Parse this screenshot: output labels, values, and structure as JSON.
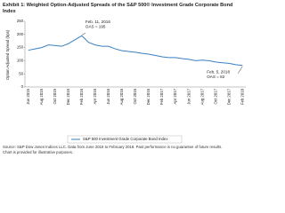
{
  "chart_data": {
    "type": "line",
    "title": [
      "Exhibit 1: Weighted Option-Adjusted Spreads of the S&P 500® Investment Grade Corporate Bond",
      "Index"
    ],
    "y_label": "Option Adjusted Spread (bps)",
    "categories": [
      "Jun 2015",
      null,
      "Aug 2015",
      null,
      "Oct 2015",
      null,
      "Dec 2015",
      null,
      "Feb 2016",
      null,
      "Apr 2016",
      null,
      "Jun 2016",
      null,
      "Aug 2016",
      null,
      "Oct 2016",
      null,
      "Dec 2016",
      null,
      "Feb 2017",
      null,
      "Apr 2017",
      null,
      "Jun 2017",
      null,
      "Aug 2017",
      null,
      "Oct 2017",
      null,
      "Dec 2017",
      null,
      "Feb 2018"
    ],
    "series": [
      {
        "name": "S&P 500 Investment Grade Corporate Bond Index",
        "color": "#3a7fc1",
        "values": [
          140,
          145,
          150,
          160,
          158,
          155,
          165,
          180,
          195,
          170,
          160,
          155,
          155,
          145,
          138,
          135,
          132,
          128,
          125,
          120,
          115,
          112,
          112,
          108,
          105,
          100,
          102,
          100,
          95,
          92,
          90,
          85,
          82
        ]
      }
    ],
    "ylim": [
      0,
      250
    ],
    "yticks": [
      0,
      50,
      100,
      150,
      200,
      250
    ],
    "grid": false,
    "annotations": [
      {
        "lines": [
          "Feb. 11, 2016",
          "OAS = 195"
        ],
        "index": 8
      },
      {
        "lines": [
          "Feb. 5, 2018",
          "OAS = 82"
        ],
        "index": 32
      }
    ],
    "footer": [
      "Source: S&P Dow Jones Indices LLC. Data from June 2015 to February 2018. Past performance is no guarantee of future results.",
      "Chart is provided for illustrative purposes."
    ]
  }
}
